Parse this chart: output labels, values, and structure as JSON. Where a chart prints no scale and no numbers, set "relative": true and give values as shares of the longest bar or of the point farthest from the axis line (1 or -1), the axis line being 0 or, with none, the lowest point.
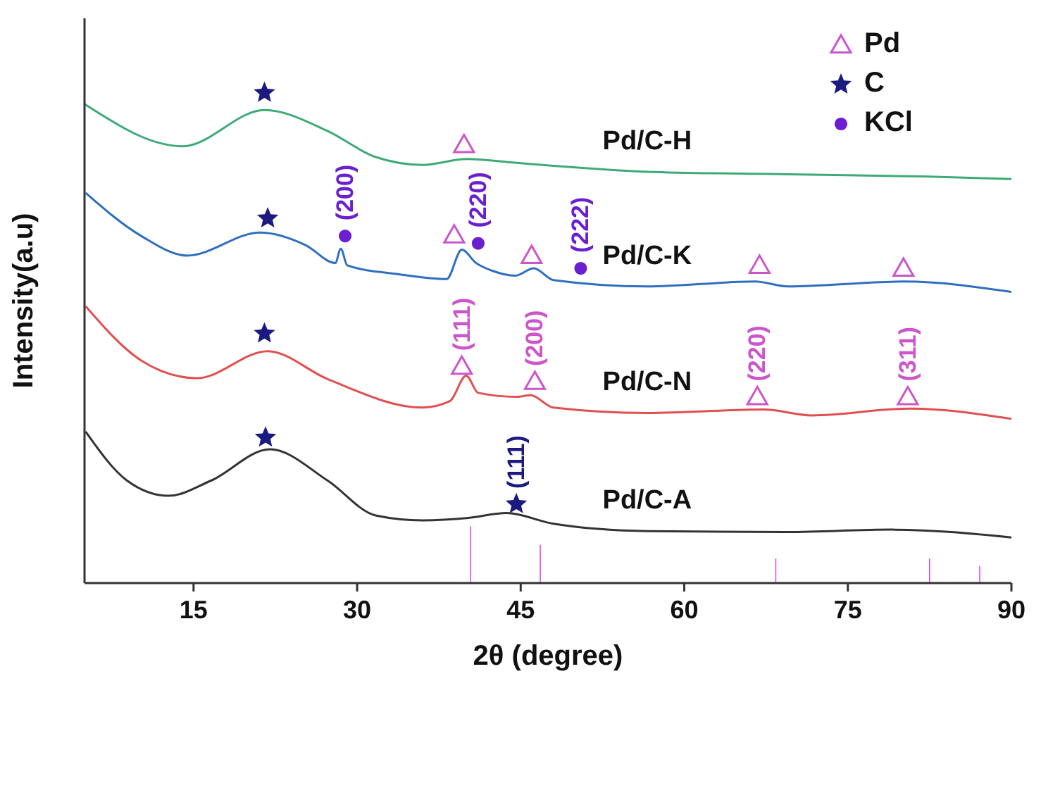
{
  "chart_data": {
    "type": "line",
    "relative": true,
    "xlabel": "2θ (degree)",
    "ylabel": "Intensity(a.u)",
    "xlim": [
      5,
      90
    ],
    "xticks": [
      15,
      30,
      45,
      60,
      75,
      90
    ],
    "legend": "top right",
    "series": [
      {
        "name": "Pd/C-H",
        "color": "#3daa77",
        "x": [
          5,
          14,
          21.5,
          27.3,
          31.7,
          36,
          40.1,
          43.7,
          48,
          56.6,
          69.5,
          82.4,
          90
        ],
        "values": [
          0.977,
          0.891,
          0.965,
          0.922,
          0.869,
          0.853,
          0.865,
          0.859,
          0.851,
          0.839,
          0.834,
          0.829,
          0.824
        ]
      },
      {
        "name": "Pd/C-K",
        "color": "#2e6fc0",
        "x": [
          5.1,
          10.2,
          14.4,
          21.1,
          25.3,
          28,
          28.5,
          29.1,
          33.8,
          38.2,
          39.6,
          40.9,
          42.4,
          44.5,
          46.2,
          48,
          56.6,
          66.5,
          69.5,
          80.2,
          90
        ],
        "values": [
          0.796,
          0.708,
          0.668,
          0.715,
          0.689,
          0.653,
          0.682,
          0.648,
          0.63,
          0.62,
          0.68,
          0.653,
          0.637,
          0.627,
          0.642,
          0.618,
          0.605,
          0.615,
          0.605,
          0.615,
          0.594
        ]
      },
      {
        "name": "Pd/C-N",
        "color": "#e05050",
        "x": [
          5.1,
          10.2,
          15.3,
          21.8,
          27.3,
          36,
          38.5,
          40,
          41.1,
          44.6,
          45.9,
          48,
          56.6,
          67.3,
          71.7,
          80.7,
          90
        ],
        "values": [
          0.565,
          0.454,
          0.418,
          0.473,
          0.416,
          0.358,
          0.371,
          0.423,
          0.388,
          0.38,
          0.383,
          0.358,
          0.347,
          0.354,
          0.342,
          0.356,
          0.335
        ]
      },
      {
        "name": "Pd/C-A",
        "color": "#333333",
        "x": [
          5.1,
          8.9,
          12.7,
          16.6,
          22,
          27.3,
          31.7,
          36,
          40.2,
          43.7,
          48,
          56.6,
          69.5,
          79,
          90
        ],
        "values": [
          0.309,
          0.209,
          0.178,
          0.209,
          0.273,
          0.209,
          0.138,
          0.128,
          0.133,
          0.143,
          0.121,
          0.106,
          0.104,
          0.109,
          0.093
        ]
      },
      {
        "type": "bar",
        "color": "#dd33dd",
        "x": [
          40.4,
          46.8,
          68.4,
          82.5,
          87.1
        ],
        "values": [
          0.116,
          0.078,
          0.05,
          0.05,
          0.035
        ]
      },
      {
        "type": "scatter",
        "name": "Pd",
        "marker": "triangle",
        "color": "#cc55cc",
        "x": [
          39.8,
          38.9,
          46.0,
          66.9,
          80.1,
          39.6,
          46.3,
          66.7,
          80.5
        ],
        "values": [
          0.894,
          0.71,
          0.668,
          0.648,
          0.642,
          0.442,
          0.411,
          0.38,
          0.38
        ]
      },
      {
        "type": "scatter",
        "name": "C",
        "marker": "star",
        "color": "#1a1a80",
        "x": [
          21.5,
          21.8,
          21.5,
          21.6,
          44.6
        ],
        "values": [
          1.0,
          0.744,
          0.509,
          0.297,
          0.161
        ]
      },
      {
        "type": "scatter",
        "name": "KCl",
        "marker": "circle",
        "color": "#6a1fd0",
        "x": [
          28.9,
          41.1,
          50.5
        ],
        "values": [
          0.708,
          0.693,
          0.642
        ]
      }
    ],
    "annotations": [
      {
        "text": "(200)",
        "x": 28.9,
        "y": 0.708
      },
      {
        "text": "(220)",
        "x": 41.1,
        "y": 0.693
      },
      {
        "text": "(222)",
        "x": 50.5,
        "y": 0.642
      },
      {
        "text": "(111)",
        "x": 39.6,
        "y": 0.442
      },
      {
        "text": "(200)",
        "x": 46.3,
        "y": 0.411
      },
      {
        "text": "(220)",
        "x": 66.7,
        "y": 0.38
      },
      {
        "text": "(311)",
        "x": 80.5,
        "y": 0.38
      },
      {
        "text": "(111)",
        "x": 44.6,
        "y": 0.161
      }
    ]
  }
}
